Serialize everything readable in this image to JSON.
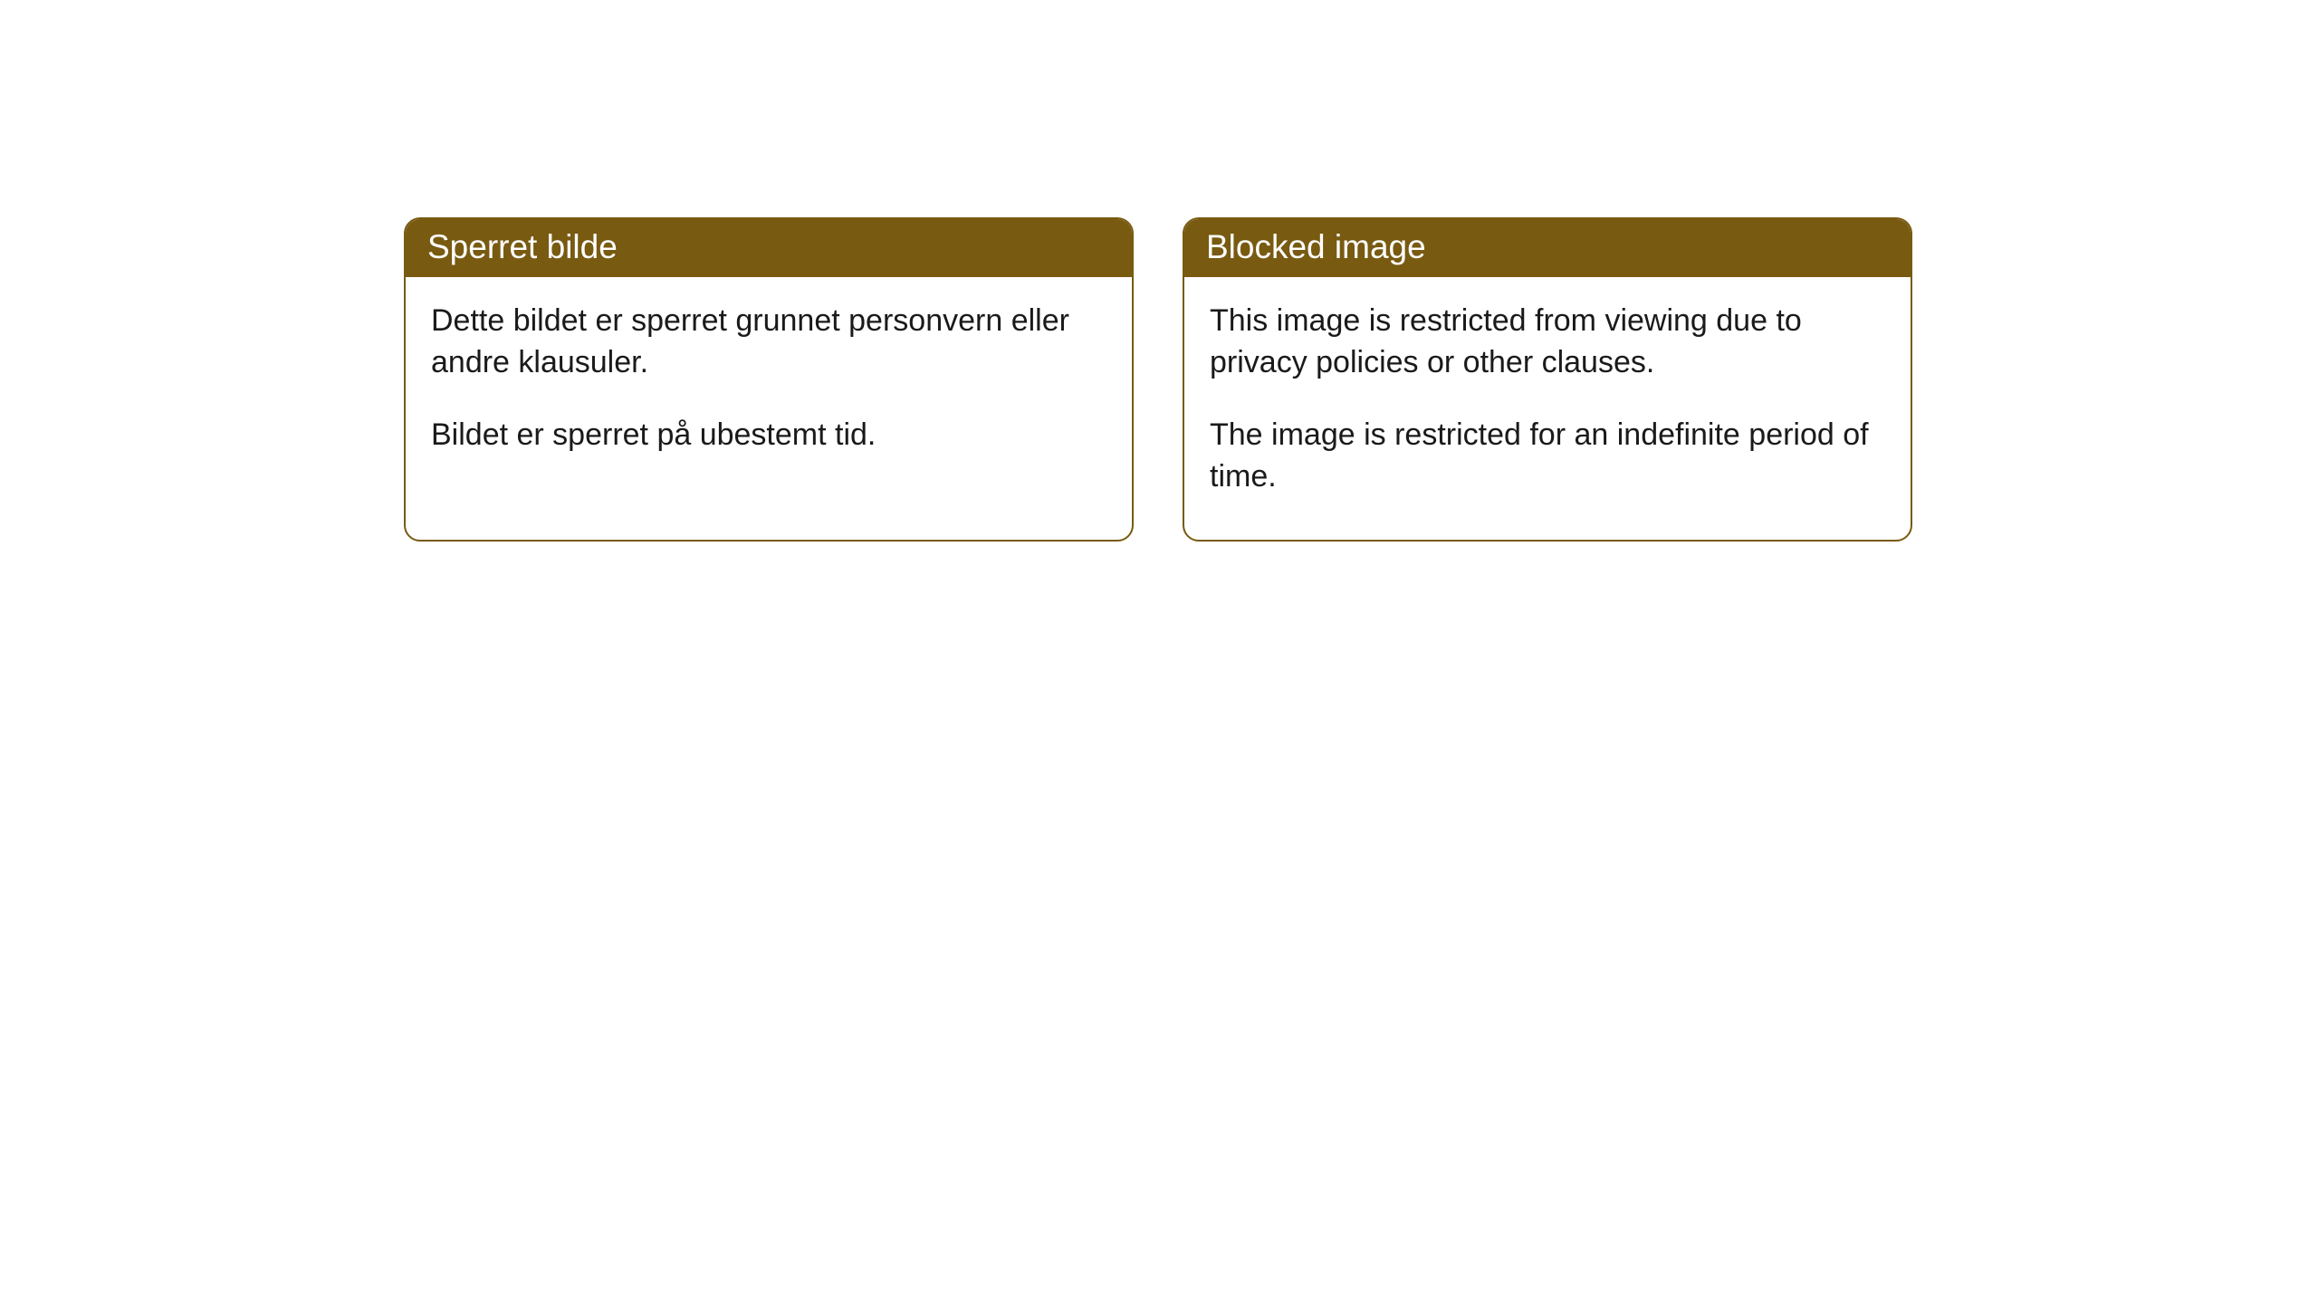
{
  "cards": [
    {
      "header": "Sperret bilde",
      "para1": "Dette bildet er sperret grunnet personvern eller andre klausuler.",
      "para2": "Bildet er sperret på ubestemt tid."
    },
    {
      "header": "Blocked image",
      "para1": "This image is restricted from viewing due to privacy policies or other clauses.",
      "para2": "The image is restricted for an indefinite period of time."
    }
  ],
  "style": {
    "header_bg_color": "#785a11",
    "header_text_color": "#ffffff",
    "border_color": "#785a11",
    "body_bg_color": "#ffffff",
    "body_text_color": "#1a1a1a",
    "border_radius": 18,
    "header_fontsize": 37,
    "body_fontsize": 34
  }
}
